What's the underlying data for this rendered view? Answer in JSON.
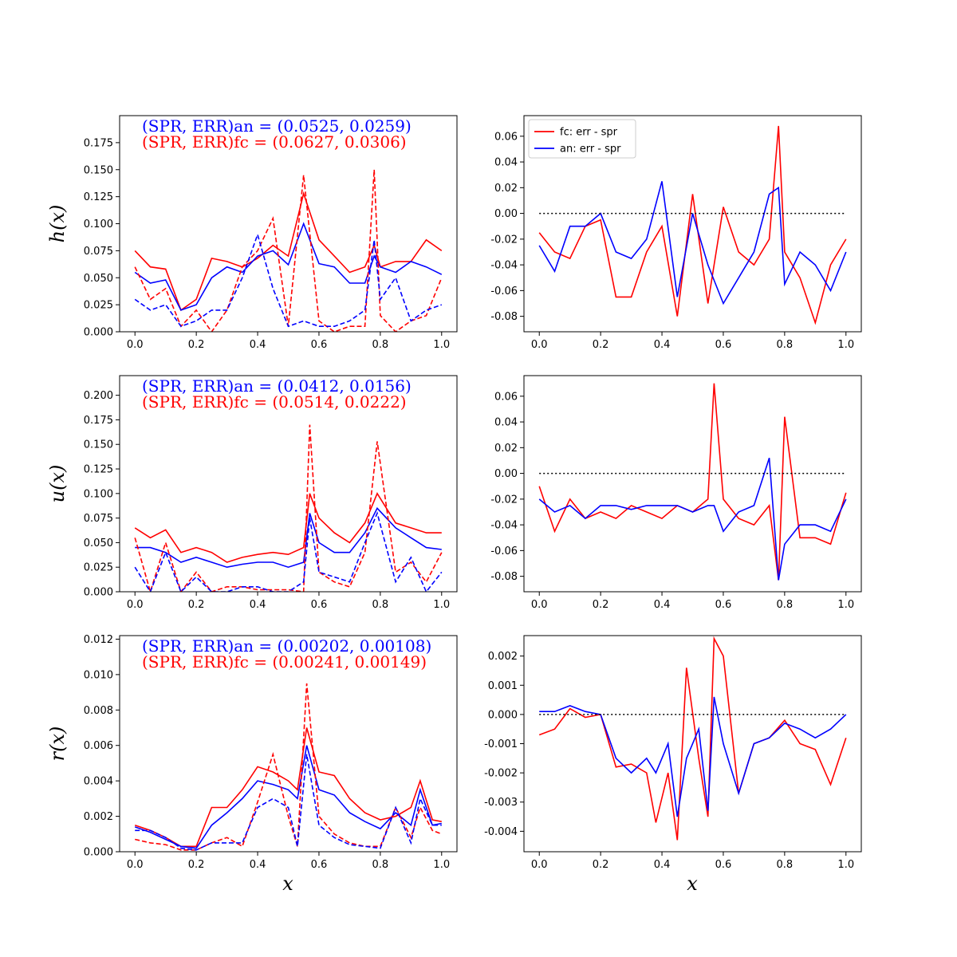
{
  "colors": {
    "fc": "#ff0000",
    "an": "#0000ff",
    "zero": "#000000"
  },
  "legend": {
    "fc": "fc: err  - spr",
    "an": "an: err - spr"
  },
  "x_label": "x",
  "chart_data": [
    {
      "id": "h-left",
      "type": "line",
      "ylabel": "h(x)",
      "xlim": [
        -0.05,
        1.05
      ],
      "ylim": [
        0,
        0.2
      ],
      "yticks": [
        "0.000",
        "0.025",
        "0.050",
        "0.075",
        "0.100",
        "0.125",
        "0.150",
        "0.175"
      ],
      "xticks": [
        "0.0",
        "0.2",
        "0.4",
        "0.6",
        "0.8",
        "1.0"
      ],
      "annotation": {
        "an": "(SPR, ERR)an = (0.0525, 0.0259)",
        "fc": "(SPR, ERR)fc = (0.0627, 0.0306)"
      },
      "x": [
        0,
        0.05,
        0.1,
        0.15,
        0.2,
        0.25,
        0.3,
        0.35,
        0.4,
        0.45,
        0.5,
        0.55,
        0.6,
        0.65,
        0.7,
        0.75,
        0.78,
        0.8,
        0.85,
        0.9,
        0.95,
        1.0
      ],
      "series": [
        {
          "key": "fc",
          "style": "solid",
          "values": [
            0.075,
            0.06,
            0.058,
            0.02,
            0.03,
            0.068,
            0.065,
            0.06,
            0.068,
            0.08,
            0.07,
            0.128,
            0.085,
            0.07,
            0.055,
            0.06,
            0.08,
            0.06,
            0.065,
            0.065,
            0.085,
            0.075
          ]
        },
        {
          "key": "an",
          "style": "solid",
          "values": [
            0.055,
            0.045,
            0.048,
            0.02,
            0.025,
            0.05,
            0.06,
            0.055,
            0.07,
            0.075,
            0.062,
            0.1,
            0.063,
            0.06,
            0.045,
            0.045,
            0.07,
            0.06,
            0.055,
            0.065,
            0.06,
            0.053
          ]
        },
        {
          "key": "fc",
          "style": "dashed",
          "values": [
            0.06,
            0.03,
            0.04,
            0.005,
            0.02,
            0.0,
            0.02,
            0.06,
            0.075,
            0.105,
            0.005,
            0.145,
            0.01,
            0.0,
            0.005,
            0.005,
            0.15,
            0.015,
            0.0,
            0.01,
            0.015,
            0.05
          ]
        },
        {
          "key": "an",
          "style": "dashed",
          "values": [
            0.03,
            0.02,
            0.025,
            0.005,
            0.01,
            0.02,
            0.02,
            0.05,
            0.09,
            0.04,
            0.005,
            0.01,
            0.005,
            0.005,
            0.01,
            0.02,
            0.085,
            0.03,
            0.05,
            0.01,
            0.02,
            0.025
          ]
        }
      ]
    },
    {
      "id": "h-right",
      "type": "line",
      "xlim": [
        -0.05,
        1.05
      ],
      "ylim": [
        -0.092,
        0.076
      ],
      "yticks": [
        "-0.08",
        "-0.06",
        "-0.04",
        "-0.02",
        "0.00",
        "0.02",
        "0.04",
        "0.06"
      ],
      "xticks": [
        "0.0",
        "0.2",
        "0.4",
        "0.6",
        "0.8",
        "1.0"
      ],
      "show_legend": true,
      "x": [
        0,
        0.05,
        0.1,
        0.15,
        0.2,
        0.25,
        0.3,
        0.35,
        0.4,
        0.45,
        0.5,
        0.55,
        0.6,
        0.65,
        0.7,
        0.75,
        0.78,
        0.8,
        0.85,
        0.9,
        0.95,
        1.0
      ],
      "series": [
        {
          "key": "fc",
          "style": "solid",
          "values": [
            -0.015,
            -0.03,
            -0.035,
            -0.01,
            -0.005,
            -0.065,
            -0.065,
            -0.03,
            -0.01,
            -0.08,
            0.015,
            -0.07,
            0.005,
            -0.03,
            -0.04,
            -0.02,
            0.068,
            -0.03,
            -0.05,
            -0.085,
            -0.04,
            -0.02
          ]
        },
        {
          "key": "an",
          "style": "solid",
          "values": [
            -0.025,
            -0.045,
            -0.01,
            -0.01,
            0.0,
            -0.03,
            -0.035,
            -0.02,
            0.025,
            -0.065,
            0.0,
            -0.04,
            -0.07,
            -0.05,
            -0.03,
            0.015,
            0.02,
            -0.055,
            -0.03,
            -0.04,
            -0.06,
            -0.03
          ]
        },
        {
          "key": "zero",
          "style": "dotted",
          "values": [
            0,
            0,
            0,
            0,
            0,
            0,
            0,
            0,
            0,
            0,
            0,
            0,
            0,
            0,
            0,
            0,
            0,
            0,
            0,
            0,
            0,
            0
          ]
        }
      ]
    },
    {
      "id": "u-left",
      "type": "line",
      "ylabel": "u(x)",
      "xlim": [
        -0.05,
        1.05
      ],
      "ylim": [
        0,
        0.22
      ],
      "yticks": [
        "0.000",
        "0.025",
        "0.050",
        "0.075",
        "0.100",
        "0.125",
        "0.150",
        "0.175",
        "0.200"
      ],
      "xticks": [
        "0.0",
        "0.2",
        "0.4",
        "0.6",
        "0.8",
        "1.0"
      ],
      "annotation": {
        "an": "(SPR, ERR)an = (0.0412, 0.0156)",
        "fc": "(SPR, ERR)fc = (0.0514, 0.0222)"
      },
      "x": [
        0,
        0.05,
        0.1,
        0.15,
        0.2,
        0.25,
        0.3,
        0.35,
        0.4,
        0.45,
        0.5,
        0.55,
        0.57,
        0.6,
        0.65,
        0.7,
        0.75,
        0.79,
        0.85,
        0.9,
        0.95,
        1.0
      ],
      "series": [
        {
          "key": "fc",
          "style": "solid",
          "values": [
            0.065,
            0.055,
            0.063,
            0.04,
            0.045,
            0.04,
            0.03,
            0.035,
            0.038,
            0.04,
            0.038,
            0.045,
            0.1,
            0.075,
            0.06,
            0.05,
            0.07,
            0.1,
            0.07,
            0.065,
            0.06,
            0.06
          ]
        },
        {
          "key": "an",
          "style": "solid",
          "values": [
            0.045,
            0.045,
            0.04,
            0.03,
            0.035,
            0.03,
            0.025,
            0.028,
            0.03,
            0.03,
            0.025,
            0.03,
            0.08,
            0.05,
            0.04,
            0.04,
            0.06,
            0.085,
            0.065,
            0.055,
            0.045,
            0.043
          ]
        },
        {
          "key": "fc",
          "style": "dashed",
          "values": [
            0.055,
            0.0,
            0.05,
            0.0,
            0.02,
            0.0,
            0.005,
            0.005,
            0.002,
            0.002,
            0.002,
            0.0,
            0.17,
            0.02,
            0.01,
            0.005,
            0.04,
            0.153,
            0.02,
            0.03,
            0.01,
            0.04
          ]
        },
        {
          "key": "an",
          "style": "dashed",
          "values": [
            0.025,
            0.0,
            0.04,
            0.0,
            0.015,
            0.0,
            0.0,
            0.005,
            0.005,
            0.0,
            0.0,
            0.01,
            0.075,
            0.02,
            0.015,
            0.01,
            0.05,
            0.08,
            0.01,
            0.035,
            0.0,
            0.02
          ]
        }
      ]
    },
    {
      "id": "u-right",
      "type": "line",
      "xlim": [
        -0.05,
        1.05
      ],
      "ylim": [
        -0.092,
        0.076
      ],
      "yticks": [
        "-0.08",
        "-0.06",
        "-0.04",
        "-0.02",
        "0.00",
        "0.02",
        "0.04",
        "0.06"
      ],
      "xticks": [
        "0.0",
        "0.2",
        "0.4",
        "0.6",
        "0.8",
        "1.0"
      ],
      "x": [
        0,
        0.05,
        0.1,
        0.15,
        0.2,
        0.25,
        0.3,
        0.35,
        0.4,
        0.45,
        0.5,
        0.55,
        0.57,
        0.6,
        0.65,
        0.7,
        0.75,
        0.78,
        0.8,
        0.85,
        0.9,
        0.95,
        1.0
      ],
      "series": [
        {
          "key": "fc",
          "style": "solid",
          "values": [
            -0.01,
            -0.045,
            -0.02,
            -0.035,
            -0.03,
            -0.035,
            -0.025,
            -0.03,
            -0.035,
            -0.025,
            -0.03,
            -0.02,
            0.07,
            -0.02,
            -0.035,
            -0.04,
            -0.025,
            -0.083,
            0.044,
            -0.05,
            -0.05,
            -0.055,
            -0.015
          ]
        },
        {
          "key": "an",
          "style": "solid",
          "values": [
            -0.02,
            -0.03,
            -0.025,
            -0.035,
            -0.025,
            -0.025,
            -0.028,
            -0.025,
            -0.025,
            -0.025,
            -0.03,
            -0.025,
            -0.025,
            -0.045,
            -0.03,
            -0.025,
            0.012,
            -0.083,
            -0.055,
            -0.04,
            -0.04,
            -0.045,
            -0.02
          ]
        },
        {
          "key": "zero",
          "style": "dotted",
          "values": [
            0,
            0,
            0,
            0,
            0,
            0,
            0,
            0,
            0,
            0,
            0,
            0,
            0,
            0,
            0,
            0,
            0,
            0,
            0,
            0,
            0,
            0,
            0
          ]
        }
      ]
    },
    {
      "id": "r-left",
      "type": "line",
      "ylabel": "r(x)",
      "xlim": [
        -0.05,
        1.05
      ],
      "ylim": [
        0,
        0.0122
      ],
      "yticks": [
        "0.000",
        "0.002",
        "0.004",
        "0.006",
        "0.008",
        "0.010",
        "0.012"
      ],
      "xticks": [
        "0.0",
        "0.2",
        "0.4",
        "0.6",
        "0.8",
        "1.0"
      ],
      "annotation": {
        "an": "(SPR, ERR)an = (0.00202, 0.00108)",
        "fc": "(SPR, ERR)fc = (0.00241, 0.00149)"
      },
      "x": [
        0,
        0.05,
        0.1,
        0.15,
        0.2,
        0.25,
        0.3,
        0.35,
        0.4,
        0.45,
        0.5,
        0.53,
        0.56,
        0.6,
        0.65,
        0.7,
        0.75,
        0.8,
        0.85,
        0.9,
        0.93,
        0.97,
        1.0
      ],
      "series": [
        {
          "key": "fc",
          "style": "solid",
          "values": [
            0.0015,
            0.0012,
            0.0008,
            0.0003,
            0.0003,
            0.0025,
            0.0025,
            0.0035,
            0.0048,
            0.0045,
            0.004,
            0.0035,
            0.007,
            0.0045,
            0.0043,
            0.003,
            0.0022,
            0.0018,
            0.002,
            0.0025,
            0.004,
            0.0018,
            0.0017
          ]
        },
        {
          "key": "an",
          "style": "solid",
          "values": [
            0.0014,
            0.0011,
            0.0007,
            0.0003,
            0.0002,
            0.0015,
            0.0022,
            0.003,
            0.004,
            0.0038,
            0.0035,
            0.003,
            0.006,
            0.0035,
            0.0032,
            0.0022,
            0.0017,
            0.0013,
            0.0022,
            0.0015,
            0.0035,
            0.0015,
            0.0016
          ]
        },
        {
          "key": "fc",
          "style": "dashed",
          "values": [
            0.0007,
            0.0005,
            0.0004,
            0.0001,
            0.0001,
            0.0005,
            0.0008,
            0.0003,
            0.0028,
            0.0055,
            0.002,
            0.0003,
            0.0095,
            0.002,
            0.001,
            0.0005,
            0.0003,
            0.0003,
            0.0025,
            0.0008,
            0.0025,
            0.0012,
            0.001
          ]
        },
        {
          "key": "an",
          "style": "dashed",
          "values": [
            0.0012,
            0.0012,
            0.0008,
            0.0002,
            0.0001,
            0.0005,
            0.0005,
            0.0005,
            0.0025,
            0.003,
            0.0025,
            0.0003,
            0.0055,
            0.0015,
            0.0008,
            0.0004,
            0.0003,
            0.0002,
            0.0025,
            0.0005,
            0.003,
            0.0015,
            0.0015
          ]
        }
      ]
    },
    {
      "id": "r-right",
      "type": "line",
      "xlim": [
        -0.05,
        1.05
      ],
      "ylim": [
        -0.0047,
        0.0027
      ],
      "yticks": [
        "-0.004",
        "-0.003",
        "-0.002",
        "-0.001",
        "0.000",
        "0.001",
        "0.002"
      ],
      "xticks": [
        "0.0",
        "0.2",
        "0.4",
        "0.6",
        "0.8",
        "1.0"
      ],
      "x": [
        0,
        0.05,
        0.1,
        0.15,
        0.2,
        0.25,
        0.3,
        0.35,
        0.38,
        0.42,
        0.45,
        0.48,
        0.52,
        0.55,
        0.57,
        0.6,
        0.65,
        0.7,
        0.75,
        0.8,
        0.85,
        0.9,
        0.95,
        1.0
      ],
      "series": [
        {
          "key": "fc",
          "style": "solid",
          "values": [
            -0.0007,
            -0.0005,
            0.0002,
            -0.0001,
            0.0,
            -0.0018,
            -0.0017,
            -0.002,
            -0.0037,
            -0.002,
            -0.0043,
            0.0016,
            -0.0015,
            -0.0035,
            0.0026,
            0.002,
            -0.0027,
            -0.001,
            -0.0008,
            -0.0002,
            -0.001,
            -0.0012,
            -0.0024,
            -0.0008
          ]
        },
        {
          "key": "an",
          "style": "solid",
          "values": [
            0.0001,
            0.0001,
            0.0003,
            0.0001,
            0.0,
            -0.0015,
            -0.002,
            -0.0015,
            -0.002,
            -0.001,
            -0.0035,
            -0.0015,
            -0.0005,
            -0.0033,
            0.0006,
            -0.001,
            -0.0027,
            -0.001,
            -0.0008,
            -0.0003,
            -0.0005,
            -0.0008,
            -0.0005,
            0.0
          ]
        },
        {
          "key": "zero",
          "style": "dotted",
          "values": [
            0,
            0,
            0,
            0,
            0,
            0,
            0,
            0,
            0,
            0,
            0,
            0,
            0,
            0,
            0,
            0,
            0,
            0,
            0,
            0,
            0,
            0,
            0,
            0
          ]
        }
      ]
    }
  ]
}
